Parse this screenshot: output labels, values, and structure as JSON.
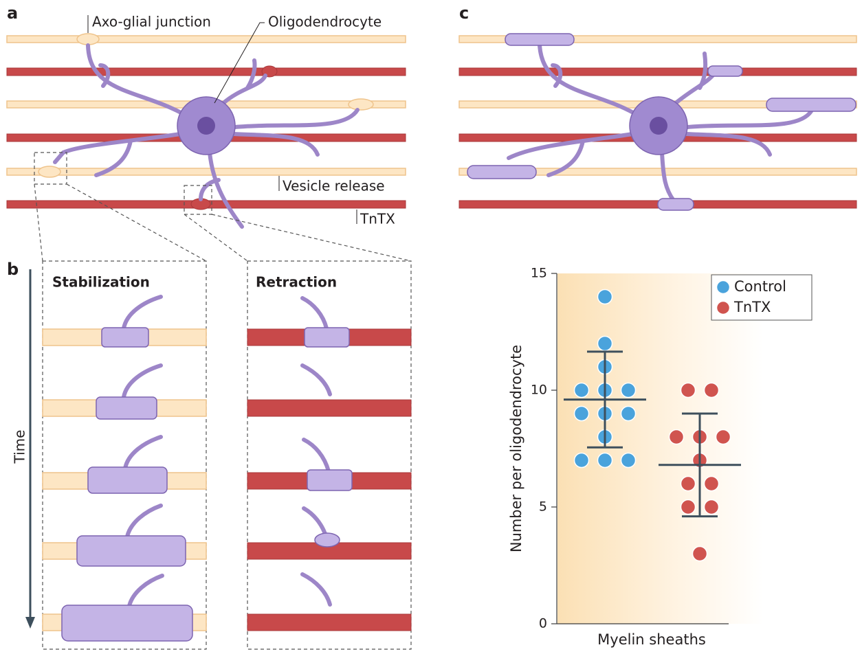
{
  "panel_labels": [
    "a",
    "b",
    "c"
  ],
  "panel_a": {
    "labels": [
      "Axo-glial junction",
      "Oligodendrocyte",
      "Vesicle release",
      "TnTX"
    ]
  },
  "panel_b": {
    "time_label": "Time",
    "columns": [
      "Stabilization",
      "Retraction"
    ]
  },
  "chart_data": {
    "type": "scatter",
    "xlabel": "Myelin sheaths",
    "ylabel": "Number per oligodendrocyte",
    "ylim": [
      0,
      15
    ],
    "yticks": [
      0,
      5,
      10,
      15
    ],
    "legend": "upper right",
    "series": [
      {
        "name": "Control",
        "color": "#4aa3dc",
        "values": [
          14,
          12,
          11,
          10,
          10,
          10,
          9,
          9,
          9,
          8,
          7,
          7,
          7
        ],
        "mean": 9.6,
        "error": 2.05
      },
      {
        "name": "TnTX",
        "color": "#d0544f",
        "values": [
          10,
          10,
          8,
          8,
          8,
          7,
          6,
          6,
          5,
          5,
          3
        ],
        "mean": 6.8,
        "error": 2.2
      }
    ]
  }
}
